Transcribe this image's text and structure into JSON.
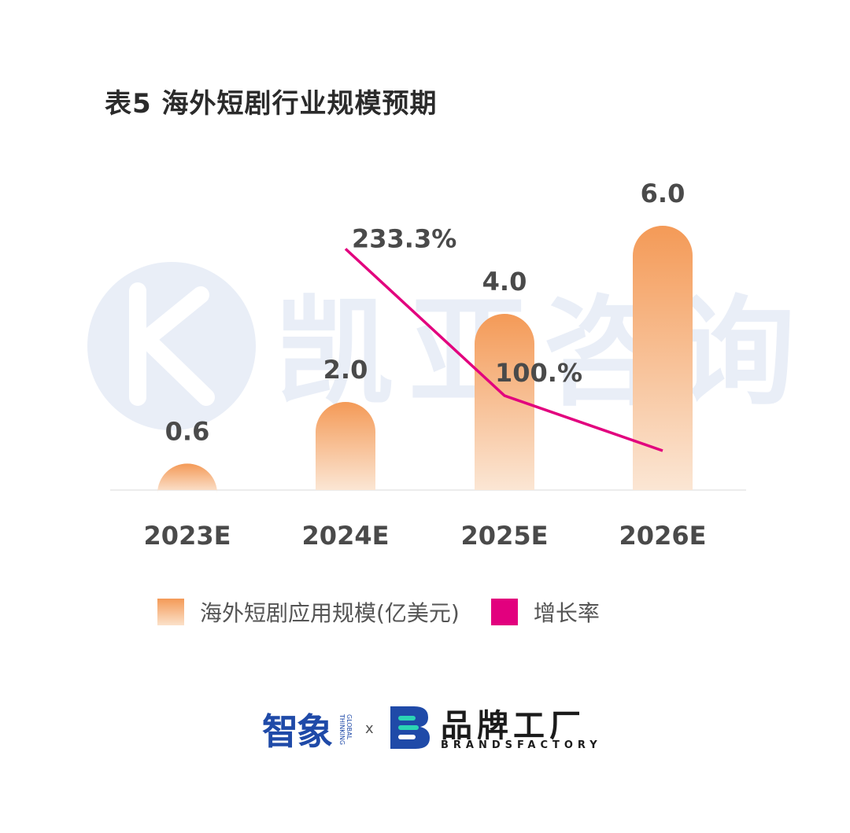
{
  "chart_data": {
    "type": "bar",
    "title": "表5  海外短剧行业规模预期",
    "categories": [
      "2023E",
      "2024E",
      "2025E",
      "2026E"
    ],
    "series": [
      {
        "name": "海外短剧应用规模(亿美元)",
        "type": "bar",
        "values": [
          0.6,
          2.0,
          4.0,
          6.0
        ],
        "value_labels": [
          "0.6",
          "2.0",
          "4.0",
          "6.0"
        ]
      },
      {
        "name": "增长率",
        "type": "line",
        "x": [
          "2024E",
          "2025E",
          "2026E"
        ],
        "values": [
          233.3,
          100.0,
          50.0
        ],
        "value_labels": [
          "233.3%",
          "100.%",
          ""
        ]
      }
    ],
    "legend_position": "bottom",
    "grid": false
  },
  "colors": {
    "bar_top": "#f49a57",
    "bar_bottom": "#fbe1ca",
    "line": "#e2007e",
    "watermark": "#e9eef7"
  },
  "watermark_text": "凯亚咨询",
  "footer": {
    "logo_left": "智象",
    "logo_left_sub": "GLOBAL THINKING",
    "separator": "x",
    "logo_right_cn": "品牌工厂",
    "logo_right_en": "BRANDSFACTORY"
  }
}
